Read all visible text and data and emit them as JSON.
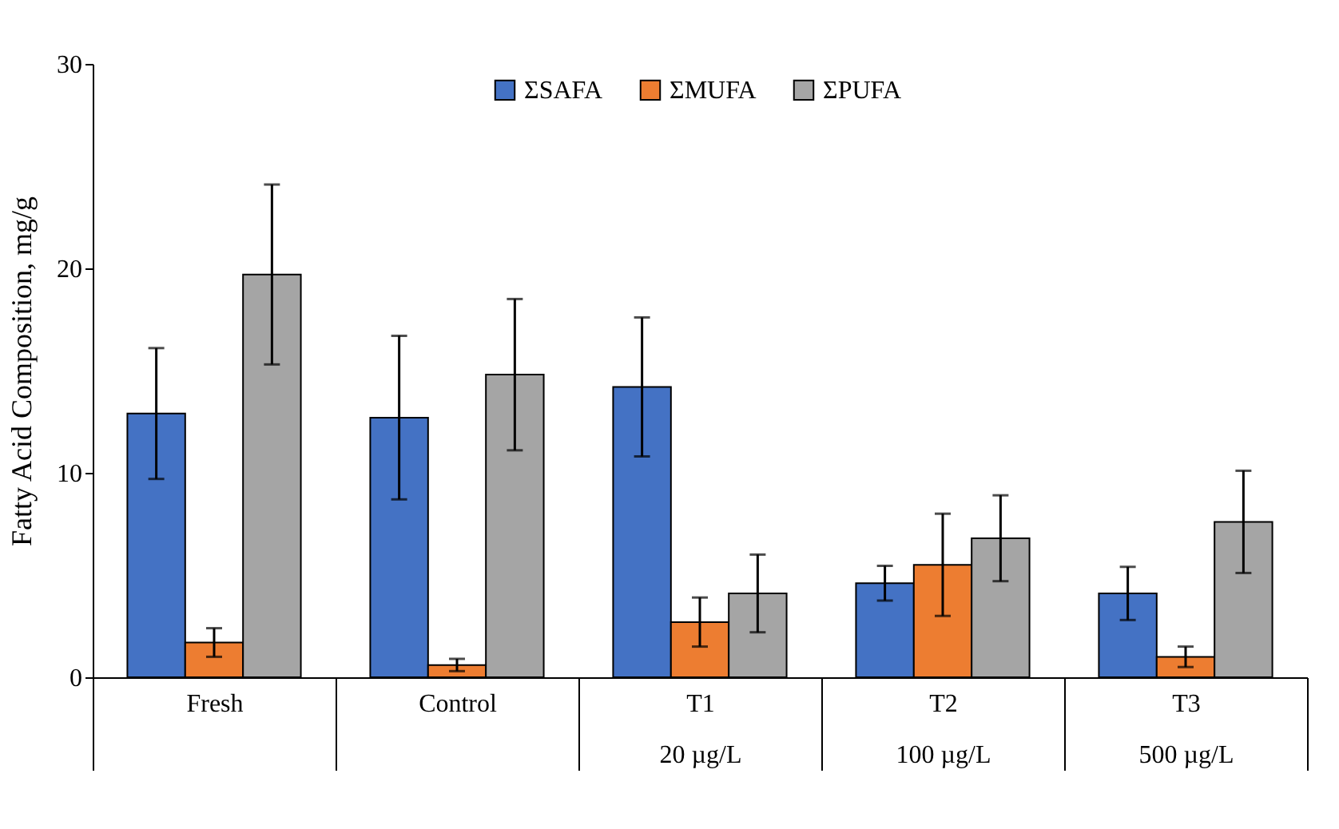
{
  "chart_data": {
    "type": "bar",
    "categories": [
      "Fresh",
      "Control",
      "T1\n20 µg/L",
      "T2\n100 µg/L",
      "T3\n500 µg/L"
    ],
    "ylabel": "Fatty Acid Composition, mg/g",
    "ylim": [
      0,
      30
    ],
    "yticks": [
      0,
      10,
      20,
      30
    ],
    "grid": false,
    "legend": "top",
    "series": [
      {
        "name": "ΣSAFA",
        "color": "#4472c4",
        "values": [
          12.9,
          12.7,
          14.2,
          4.6,
          4.1
        ],
        "errors": [
          3.2,
          4.0,
          3.4,
          0.85,
          1.3
        ]
      },
      {
        "name": "ΣMUFA",
        "color": "#ed7d31",
        "values": [
          1.7,
          0.6,
          2.7,
          5.5,
          1.0
        ],
        "errors": [
          0.7,
          0.3,
          1.2,
          2.5,
          0.5
        ]
      },
      {
        "name": "ΣPUFA",
        "color": "#a5a5a5",
        "values": [
          19.7,
          14.8,
          4.1,
          6.8,
          7.6
        ],
        "errors": [
          4.4,
          3.7,
          1.9,
          2.1,
          2.5
        ]
      }
    ]
  }
}
